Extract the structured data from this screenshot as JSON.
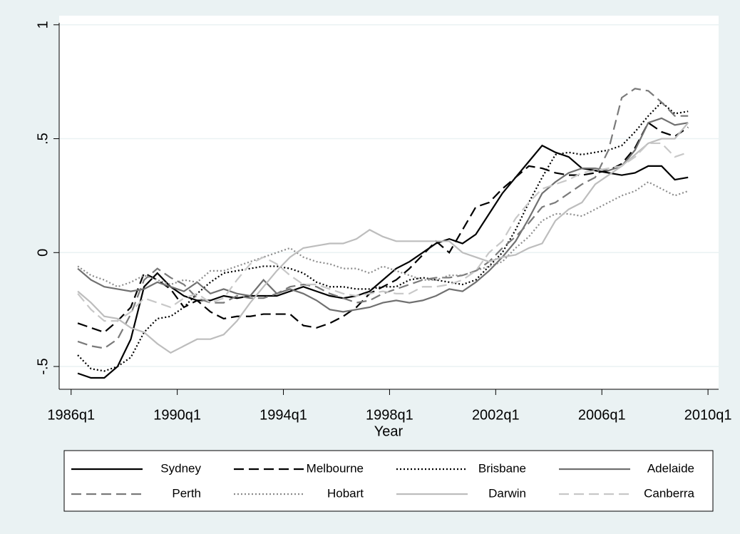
{
  "chart_data": {
    "type": "line",
    "x_label": "Year",
    "x": [
      1986.25,
      1986.75,
      1987.25,
      1987.75,
      1988.25,
      1988.75,
      1989.25,
      1989.75,
      1990.25,
      1990.75,
      1991.25,
      1991.75,
      1992.25,
      1992.75,
      1993.25,
      1993.75,
      1994.25,
      1994.75,
      1995.25,
      1995.75,
      1996.25,
      1996.75,
      1997.25,
      1997.75,
      1998.25,
      1998.75,
      1999.25,
      1999.75,
      2000.25,
      2000.75,
      2001.25,
      2001.75,
      2002.25,
      2002.75,
      2003.25,
      2003.75,
      2004.25,
      2004.75,
      2005.25,
      2005.75,
      2006.25,
      2006.75,
      2007.25,
      2007.75,
      2008.25,
      2008.75,
      2009.25
    ],
    "xlim": [
      1985.55,
      2010.4
    ],
    "xticks": [
      {
        "value": 1986,
        "label": "1986q1"
      },
      {
        "value": 1990,
        "label": "1990q1"
      },
      {
        "value": 1994,
        "label": "1994q1"
      },
      {
        "value": 1998,
        "label": "1998q1"
      },
      {
        "value": 2002,
        "label": "2002q1"
      },
      {
        "value": 2006,
        "label": "2006q1"
      },
      {
        "value": 2010,
        "label": "2010q1"
      }
    ],
    "ylim": [
      -0.6,
      1.04
    ],
    "yticks": [
      {
        "value": -0.5,
        "label": "-.5"
      },
      0,
      {
        "value": 0.5,
        "label": ".5"
      },
      1
    ],
    "grid": true,
    "series": [
      {
        "name": "Sydney",
        "color": "#000000",
        "dash": "solid",
        "values": [
          -0.53,
          -0.55,
          -0.55,
          -0.5,
          -0.38,
          -0.15,
          -0.09,
          -0.15,
          -0.19,
          -0.21,
          -0.21,
          -0.19,
          -0.2,
          -0.19,
          -0.19,
          -0.19,
          -0.17,
          -0.15,
          -0.17,
          -0.19,
          -0.2,
          -0.19,
          -0.17,
          -0.12,
          -0.07,
          -0.04,
          0.0,
          0.04,
          0.06,
          0.04,
          0.08,
          0.17,
          0.26,
          0.33,
          0.4,
          0.47,
          0.44,
          0.42,
          0.37,
          0.36,
          0.35,
          0.34,
          0.35,
          0.38,
          0.38,
          0.32,
          0.33
        ]
      },
      {
        "name": "Melbourne",
        "color": "#000000",
        "dash": "dash",
        "values": [
          -0.31,
          -0.33,
          -0.35,
          -0.3,
          -0.24,
          -0.09,
          -0.12,
          -0.16,
          -0.24,
          -0.21,
          -0.26,
          -0.29,
          -0.28,
          -0.28,
          -0.27,
          -0.27,
          -0.27,
          -0.32,
          -0.33,
          -0.31,
          -0.28,
          -0.24,
          -0.18,
          -0.15,
          -0.12,
          -0.07,
          -0.01,
          0.05,
          0.0,
          0.1,
          0.2,
          0.22,
          0.28,
          0.33,
          0.38,
          0.37,
          0.35,
          0.34,
          0.34,
          0.35,
          0.36,
          0.39,
          0.46,
          0.57,
          0.53,
          0.51,
          0.55
        ]
      },
      {
        "name": "Brisbane",
        "color": "#000000",
        "dash": "dot",
        "values": [
          -0.45,
          -0.51,
          -0.52,
          -0.5,
          -0.46,
          -0.35,
          -0.29,
          -0.28,
          -0.24,
          -0.18,
          -0.13,
          -0.09,
          -0.08,
          -0.07,
          -0.06,
          -0.06,
          -0.07,
          -0.09,
          -0.13,
          -0.15,
          -0.15,
          -0.16,
          -0.16,
          -0.15,
          -0.15,
          -0.12,
          -0.11,
          -0.12,
          -0.13,
          -0.14,
          -0.12,
          -0.06,
          0.0,
          0.1,
          0.22,
          0.33,
          0.43,
          0.44,
          0.43,
          0.44,
          0.45,
          0.47,
          0.53,
          0.6,
          0.66,
          0.61,
          0.62
        ]
      },
      {
        "name": "Adelaide",
        "color": "#707070",
        "dash": "solid",
        "values": [
          -0.07,
          -0.12,
          -0.15,
          -0.16,
          -0.17,
          -0.16,
          -0.13,
          -0.15,
          -0.17,
          -0.13,
          -0.18,
          -0.16,
          -0.18,
          -0.19,
          -0.12,
          -0.18,
          -0.16,
          -0.18,
          -0.21,
          -0.25,
          -0.26,
          -0.25,
          -0.24,
          -0.22,
          -0.21,
          -0.22,
          -0.21,
          -0.19,
          -0.16,
          -0.17,
          -0.13,
          -0.08,
          -0.02,
          0.05,
          0.15,
          0.26,
          0.31,
          0.35,
          0.37,
          0.37,
          0.36,
          0.38,
          0.45,
          0.57,
          0.59,
          0.56,
          0.57
        ]
      },
      {
        "name": "Perth",
        "color": "#7a7a7a",
        "dash": "dash",
        "values": [
          -0.39,
          -0.41,
          -0.42,
          -0.38,
          -0.27,
          -0.12,
          -0.07,
          -0.11,
          -0.14,
          -0.2,
          -0.22,
          -0.22,
          -0.19,
          -0.2,
          -0.2,
          -0.18,
          -0.15,
          -0.14,
          -0.15,
          -0.18,
          -0.2,
          -0.22,
          -0.21,
          -0.18,
          -0.16,
          -0.14,
          -0.12,
          -0.11,
          -0.11,
          -0.1,
          -0.08,
          -0.04,
          0.02,
          0.07,
          0.13,
          0.2,
          0.22,
          0.26,
          0.3,
          0.33,
          0.45,
          0.68,
          0.72,
          0.71,
          0.66,
          0.6,
          0.6
        ]
      },
      {
        "name": "Hobart",
        "color": "#8c8c8c",
        "dash": "dot",
        "values": [
          -0.06,
          -0.1,
          -0.12,
          -0.15,
          -0.13,
          -0.1,
          -0.12,
          -0.14,
          -0.12,
          -0.13,
          -0.08,
          -0.08,
          -0.06,
          -0.04,
          -0.02,
          0.0,
          0.02,
          -0.02,
          -0.04,
          -0.05,
          -0.07,
          -0.07,
          -0.09,
          -0.06,
          -0.08,
          -0.1,
          -0.12,
          -0.12,
          -0.1,
          -0.1,
          -0.08,
          -0.06,
          -0.04,
          0.02,
          0.07,
          0.14,
          0.17,
          0.17,
          0.16,
          0.19,
          0.22,
          0.25,
          0.27,
          0.31,
          0.28,
          0.25,
          0.27
        ]
      },
      {
        "name": "Darwin",
        "color": "#bdbdbd",
        "dash": "solid",
        "values": [
          -0.17,
          -0.22,
          -0.28,
          -0.29,
          -0.33,
          -0.35,
          -0.4,
          -0.44,
          -0.41,
          -0.38,
          -0.38,
          -0.36,
          -0.3,
          -0.22,
          -0.15,
          -0.08,
          -0.02,
          0.02,
          0.03,
          0.04,
          0.04,
          0.06,
          0.1,
          0.07,
          0.05,
          0.05,
          0.05,
          0.05,
          0.05,
          0.0,
          -0.02,
          -0.04,
          -0.02,
          -0.01,
          0.02,
          0.04,
          0.14,
          0.19,
          0.22,
          0.3,
          0.34,
          0.38,
          0.43,
          0.48,
          0.5,
          0.5,
          0.57
        ]
      },
      {
        "name": "Canberra",
        "color": "#c8c8c8",
        "dash": "dash",
        "values": [
          -0.18,
          -0.25,
          -0.3,
          -0.3,
          -0.26,
          -0.2,
          -0.22,
          -0.24,
          -0.2,
          -0.18,
          -0.22,
          -0.2,
          -0.12,
          -0.05,
          -0.02,
          -0.05,
          -0.1,
          -0.14,
          -0.14,
          -0.16,
          -0.18,
          -0.19,
          -0.18,
          -0.17,
          -0.18,
          -0.18,
          -0.15,
          -0.15,
          -0.14,
          -0.12,
          -0.08,
          0.0,
          0.05,
          0.15,
          0.22,
          0.28,
          0.3,
          0.32,
          0.35,
          0.36,
          0.37,
          0.38,
          0.42,
          0.48,
          0.48,
          0.42,
          0.44
        ]
      }
    ]
  }
}
